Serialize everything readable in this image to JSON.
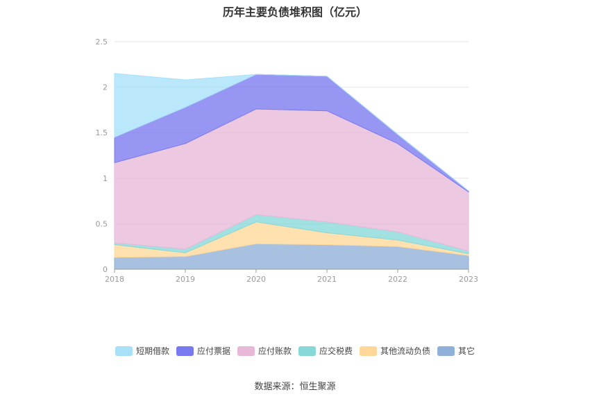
{
  "chart_data": {
    "type": "area",
    "stacked": true,
    "title": "历年主要负债堆积图（亿元）",
    "xlabel": "",
    "ylabel": "",
    "ylim": [
      0,
      2.5
    ],
    "yticks": [
      "0",
      "0.5",
      "1",
      "1.5",
      "2",
      "2.5"
    ],
    "categories": [
      "2018",
      "2019",
      "2020",
      "2021",
      "2022",
      "2023"
    ],
    "grid": true,
    "legend_position": "bottom",
    "series": [
      {
        "name": "其它",
        "color": "#8fb0d8",
        "values": [
          0.13,
          0.14,
          0.28,
          0.27,
          0.25,
          0.15
        ]
      },
      {
        "name": "其他流动负债",
        "color": "#ffd899",
        "values": [
          0.14,
          0.04,
          0.24,
          0.13,
          0.07,
          0.02
        ]
      },
      {
        "name": "应交税费",
        "color": "#88d8d8",
        "values": [
          0.02,
          0.04,
          0.08,
          0.12,
          0.09,
          0.03
        ]
      },
      {
        "name": "应付账款",
        "color": "#e8b8d8",
        "values": [
          0.88,
          1.16,
          1.16,
          1.22,
          0.97,
          0.65
        ]
      },
      {
        "name": "应付票据",
        "color": "#7a7af0",
        "values": [
          0.28,
          0.4,
          0.38,
          0.38,
          0.1,
          0.01
        ]
      },
      {
        "name": "短期借款",
        "color": "#a8e0f8",
        "values": [
          0.7,
          0.3,
          0.0,
          0.0,
          0.0,
          0.0
        ]
      }
    ],
    "legend_order": [
      "短期借款",
      "应付票据",
      "应付账款",
      "应交税费",
      "其他流动负债",
      "其它"
    ]
  },
  "footer": {
    "source": "数据来源：恒生聚源"
  }
}
